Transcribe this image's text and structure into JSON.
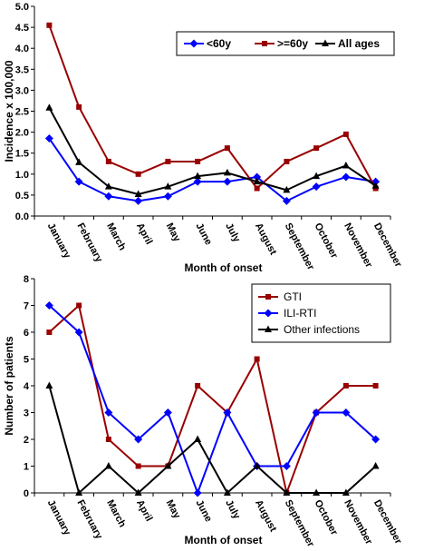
{
  "chart_data": [
    {
      "type": "line",
      "xlabel": "Month of onset",
      "ylabel": "Incidence x 100,000",
      "ylim": [
        0,
        5
      ],
      "yticks": [
        "0.0",
        "0.5",
        "1.0",
        "1.5",
        "2.0",
        "2.5",
        "3.0",
        "3.5",
        "4.0",
        "4.5",
        "5.0"
      ],
      "categories": [
        "January",
        "February",
        "March",
        "April",
        "May",
        "June",
        "July",
        "August",
        "September",
        "October",
        "November",
        "December"
      ],
      "legend_position": "top-right",
      "series": [
        {
          "name": "<60y",
          "color": "#0000ff",
          "marker": "diamond",
          "values": [
            1.85,
            0.82,
            0.47,
            0.36,
            0.47,
            0.82,
            0.82,
            0.93,
            0.36,
            0.7,
            0.93,
            0.82
          ]
        },
        {
          "name": ">=60y",
          "color": "#990000",
          "marker": "square",
          "values": [
            4.55,
            2.6,
            1.3,
            1.0,
            1.3,
            1.3,
            1.62,
            0.66,
            1.3,
            1.62,
            1.95,
            0.66
          ]
        },
        {
          "name": "All ages",
          "color": "#000000",
          "marker": "triangle",
          "values": [
            2.58,
            1.28,
            0.7,
            0.52,
            0.7,
            0.95,
            1.03,
            0.82,
            0.62,
            0.95,
            1.2,
            0.72
          ]
        }
      ]
    },
    {
      "type": "line",
      "xlabel": "Month of onset",
      "ylabel": "Number of patients",
      "ylim": [
        0,
        8
      ],
      "yticks": [
        "0",
        "1",
        "2",
        "3",
        "4",
        "5",
        "6",
        "7",
        "8"
      ],
      "categories": [
        "January",
        "February",
        "March",
        "April",
        "May",
        "June",
        "July",
        "August",
        "September",
        "October",
        "November",
        "December"
      ],
      "legend_position": "top-right",
      "series": [
        {
          "name": "GTI",
          "color": "#990000",
          "marker": "square",
          "values": [
            6,
            7,
            2,
            1,
            1,
            4,
            3,
            5,
            0,
            3,
            4,
            4
          ]
        },
        {
          "name": "ILI-RTI",
          "color": "#0000ff",
          "marker": "diamond",
          "values": [
            7,
            6,
            3,
            2,
            3,
            0,
            3,
            1,
            1,
            3,
            3,
            2
          ]
        },
        {
          "name": "Other infections",
          "color": "#000000",
          "marker": "triangle",
          "values": [
            4,
            0,
            1,
            0,
            1,
            2,
            0,
            1,
            0,
            0,
            0,
            1
          ]
        }
      ]
    }
  ]
}
